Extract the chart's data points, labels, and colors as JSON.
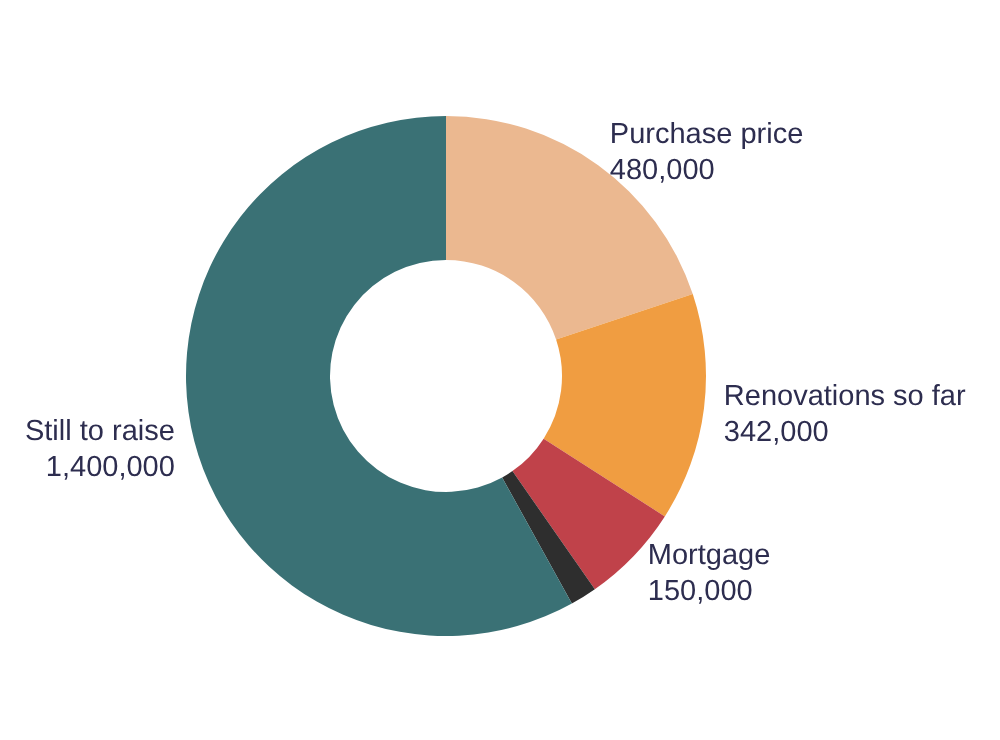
{
  "chart_data": {
    "type": "donut",
    "categories": [
      "Purchase price",
      "Renovations so far",
      "Mortgage",
      null,
      "Still to raise"
    ],
    "values": [
      480000,
      342000,
      150000,
      40000,
      1400000
    ],
    "value_labels": [
      "480,000",
      "342,000",
      "150,000",
      null,
      "1,400,000"
    ],
    "colors": [
      "#ebb890",
      "#f09d41",
      "#c0424a",
      "#2e2e2e",
      "#3a7175"
    ]
  }
}
